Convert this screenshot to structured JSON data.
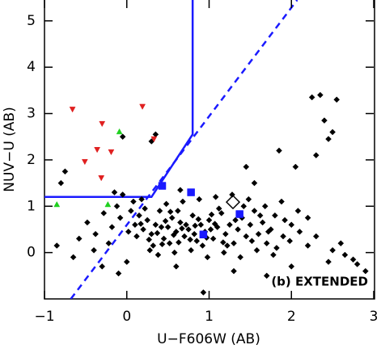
{
  "chart_data": {
    "type": "scatter",
    "x_label": "U−F606W (AB)",
    "y_label": "NUV−U (AB)",
    "annotation": "(b) EXTENDED",
    "xlim": [
      -1,
      3
    ],
    "ylim": [
      -1,
      5.45
    ],
    "xticks": [
      {
        "value": -1,
        "label": "−1"
      },
      0,
      1,
      2,
      3
    ],
    "yticks": [
      0,
      1,
      2,
      3,
      4,
      5
    ],
    "series": [
      {
        "color": "#000000",
        "marker": "diamond",
        "x": [
          0.05,
          0.1,
          0.15,
          0.2,
          0.25,
          0.3,
          0.35,
          0.4,
          0.45,
          0.5,
          0.55,
          0.6,
          0.65,
          0.7,
          0.75,
          0.8,
          0.85,
          0.9,
          0.95,
          1.0,
          1.05,
          1.1,
          1.15,
          1.2,
          1.25,
          1.3,
          1.35,
          1.4,
          1.45,
          1.5,
          1.55,
          1.6,
          1.65,
          1.7,
          1.75,
          1.8,
          1.9,
          2.0,
          2.1,
          2.2,
          0.12,
          0.22,
          0.32,
          0.42,
          0.52,
          0.62,
          0.72,
          0.82,
          0.92,
          1.02,
          1.12,
          1.22,
          1.32,
          1.42,
          1.52,
          1.62,
          1.72,
          1.82,
          1.92,
          0.02,
          -0.08,
          -0.18,
          -0.28,
          -0.38,
          -0.48,
          -0.58,
          -0.12,
          -0.22,
          -0.05,
          0.08,
          0.18,
          0.28,
          0.38,
          0.48,
          0.58,
          0.68,
          0.78,
          0.88,
          0.98,
          1.08,
          1.18,
          1.28,
          1.38,
          1.48,
          1.58,
          1.68,
          1.78,
          1.88,
          1.98,
          2.08,
          0.37,
          0.47,
          0.57,
          0.67,
          0.77,
          0.87,
          0.97,
          1.07,
          1.17,
          0.27,
          0.17,
          0.63,
          0.83,
          1.03,
          0.53,
          0.43,
          -0.75,
          -0.8,
          -0.85,
          -0.65,
          -0.4,
          -0.3,
          -0.1,
          0.0,
          0.93,
          0.3,
          0.35,
          -0.05,
          1.45,
          1.55,
          1.85,
          2.05,
          2.3,
          2.45,
          2.5,
          2.4,
          2.35,
          2.25,
          2.55,
          2.9,
          2.8,
          2.65,
          2.5,
          2.3,
          2.2,
          2.6,
          2.45,
          2.0,
          1.7,
          1.3,
          0.6,
          2.75,
          -0.15,
          0.65
        ],
        "y": [
          0.9,
          0.6,
          0.8,
          0.5,
          0.7,
          0.4,
          0.6,
          0.9,
          0.3,
          0.55,
          0.75,
          0.45,
          0.65,
          0.35,
          0.5,
          0.8,
          0.25,
          0.6,
          0.45,
          0.7,
          0.3,
          0.55,
          0.85,
          0.4,
          0.6,
          0.2,
          0.5,
          0.75,
          0.35,
          0.6,
          0.9,
          0.4,
          0.65,
          0.2,
          0.5,
          0.8,
          0.35,
          0.6,
          0.45,
          0.75,
          0.35,
          0.95,
          0.15,
          0.55,
          0.2,
          0.9,
          0.6,
          0.4,
          0.15,
          0.5,
          0.95,
          0.15,
          0.7,
          1.0,
          0.25,
          0.8,
          0.45,
          0.1,
          0.7,
          0.45,
          0.75,
          0.55,
          0.85,
          0.4,
          0.65,
          0.3,
          1.0,
          0.2,
          1.25,
          1.1,
          1.15,
          0.05,
          -0.05,
          1.05,
          0.0,
          1.1,
          0.05,
          1.15,
          -0.1,
          1.2,
          0.0,
          1.25,
          -0.1,
          1.15,
          0.05,
          1.0,
          -0.05,
          1.1,
          0.25,
          0.9,
          0.42,
          0.68,
          0.38,
          0.52,
          0.28,
          0.72,
          0.32,
          0.62,
          0.22,
          0.28,
          0.62,
          0.22,
          0.58,
          0.82,
          0.88,
          0.18,
          1.75,
          1.5,
          0.15,
          -0.1,
          0.05,
          -0.3,
          -0.45,
          -0.2,
          -0.86,
          2.4,
          2.55,
          2.5,
          1.85,
          1.5,
          2.2,
          1.85,
          2.1,
          2.45,
          2.6,
          2.85,
          3.4,
          3.35,
          3.3,
          -0.4,
          -0.25,
          -0.05,
          0.05,
          0.35,
          0.15,
          0.2,
          -0.2,
          -0.3,
          -0.5,
          -0.4,
          -0.3,
          -0.15,
          1.3,
          1.35
        ]
      },
      {
        "color": "#e02020",
        "marker": "triangle-down",
        "x": [
          -0.66,
          -0.3,
          0.19,
          -0.36,
          -0.19,
          -0.51,
          -0.31,
          0.33
        ],
        "y": [
          3.09,
          2.78,
          3.15,
          2.22,
          2.17,
          1.96,
          1.61,
          2.45
        ]
      },
      {
        "color": "#20d020",
        "marker": "triangle-up",
        "x": [
          -0.09,
          -0.85,
          -0.23
        ],
        "y": [
          2.61,
          1.04,
          1.04
        ]
      },
      {
        "color": "#1a1aff",
        "marker": "square",
        "x": [
          0.43,
          0.78,
          1.37,
          0.93
        ],
        "y": [
          1.44,
          1.3,
          0.83,
          0.39
        ]
      },
      {
        "color": "#000000",
        "marker": "open-diamond",
        "x": [
          1.29
        ],
        "y": [
          1.09
        ]
      }
    ],
    "lines": [
      {
        "color": "#1a1aff",
        "style": "solid",
        "x": [
          -1,
          0.3,
          0.8,
          0.8
        ],
        "y": [
          1.2,
          1.2,
          2.55,
          5.45
        ]
      },
      {
        "color": "#1a1aff",
        "style": "dashed",
        "x": [
          -0.68,
          2.07
        ],
        "y": [
          -1,
          5.45
        ]
      }
    ]
  }
}
